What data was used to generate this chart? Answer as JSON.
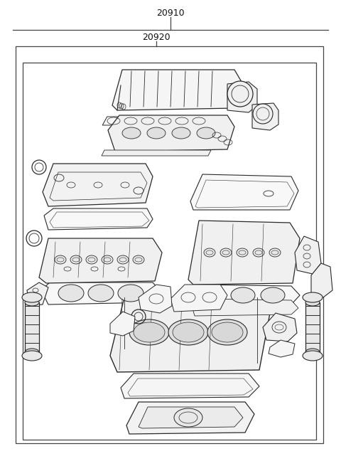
{
  "title_outer": "20910",
  "title_inner": "20920",
  "bg_color": "#ffffff",
  "line_color": "#2a2a2a",
  "border_color": "#444444",
  "fig_width": 4.8,
  "fig_height": 6.55,
  "dpi": 100,
  "font_size_labels": 9
}
